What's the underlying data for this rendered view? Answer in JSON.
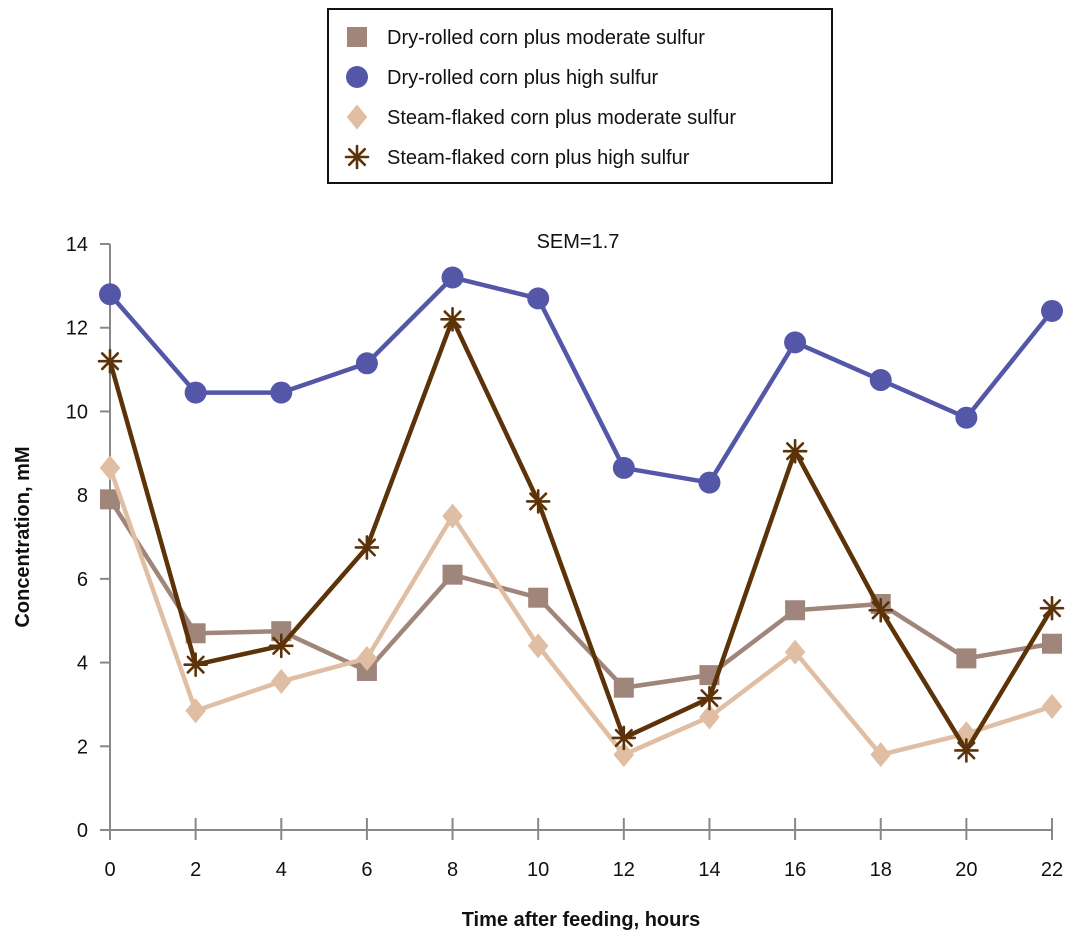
{
  "chart_data": {
    "type": "line",
    "title": "",
    "xlabel": "Time after feeding, hours",
    "ylabel": "Concentration, mM",
    "annotation": "SEM=1.7",
    "x": [
      0,
      2,
      4,
      6,
      8,
      10,
      12,
      14,
      16,
      18,
      20,
      22
    ],
    "x_ticks": [
      "0",
      "2",
      "4",
      "6",
      "8",
      "10",
      "12",
      "14",
      "16",
      "18",
      "20",
      "22"
    ],
    "y_ticks": [
      "0",
      "2",
      "4",
      "6",
      "8",
      "10",
      "12",
      "14"
    ],
    "xlim": [
      0,
      22
    ],
    "ylim": [
      0,
      14
    ],
    "grid": false,
    "legend_position": "top-center",
    "series": [
      {
        "name": "Dry-rolled corn plus moderate sulfur",
        "marker": "square",
        "color": "#a0857b",
        "values": [
          7.9,
          4.7,
          4.75,
          3.8,
          6.1,
          5.55,
          3.4,
          3.7,
          5.25,
          5.4,
          4.1,
          4.45
        ]
      },
      {
        "name": "Dry-rolled corn plus high sulfur",
        "marker": "circle",
        "color": "#5457a8",
        "values": [
          12.8,
          10.45,
          10.45,
          11.15,
          13.2,
          12.7,
          8.65,
          8.3,
          11.65,
          10.75,
          9.85,
          12.4
        ]
      },
      {
        "name": "Steam-flaked corn plus moderate sulfur",
        "marker": "diamond",
        "color": "#e0bea3",
        "values": [
          8.65,
          2.85,
          3.55,
          4.1,
          7.5,
          4.4,
          1.8,
          2.7,
          4.25,
          1.8,
          2.3,
          2.95
        ]
      },
      {
        "name": "Steam-flaked corn plus high sulfur",
        "marker": "asterisk",
        "color": "#5c3208",
        "values": [
          11.2,
          3.95,
          4.4,
          6.75,
          12.2,
          7.85,
          2.2,
          3.15,
          9.05,
          5.25,
          1.9,
          5.3
        ]
      }
    ]
  }
}
